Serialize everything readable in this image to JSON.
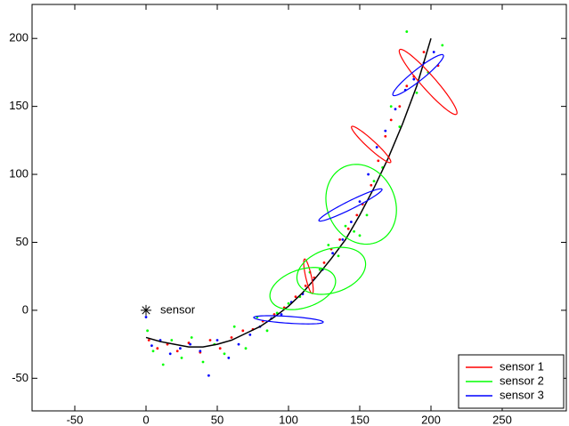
{
  "chart_data": {
    "type": "scatter",
    "xlim": [
      -80,
      295
    ],
    "ylim": [
      -74,
      225
    ],
    "xticks": [
      -50,
      0,
      50,
      100,
      150,
      200,
      250
    ],
    "yticks": [
      -50,
      0,
      50,
      100,
      150,
      200
    ],
    "legend": "lower right",
    "trajectory": {
      "color": "#000000",
      "x": [
        0,
        10,
        20,
        30,
        40,
        50,
        60,
        70,
        80,
        90,
        100,
        110,
        120,
        130,
        140,
        150,
        160,
        170,
        180,
        190,
        200
      ],
      "y": [
        -20,
        -23,
        -25,
        -27,
        -27,
        -25,
        -22,
        -17,
        -12,
        -5,
        3,
        13,
        25,
        38,
        52,
        70,
        90,
        112,
        137,
        165,
        200
      ]
    },
    "sensor_marker": {
      "x": 0,
      "y": 0,
      "label": "sensor"
    },
    "series": [
      {
        "name": "sensor 1",
        "color": "#ff0000",
        "x": [
          2,
          8,
          15,
          22,
          30,
          38,
          45,
          52,
          60,
          68,
          75,
          82,
          90,
          97,
          105,
          112,
          118,
          125,
          130,
          136,
          142,
          148,
          152,
          158,
          163,
          168,
          172,
          178,
          183,
          188,
          195,
          205
        ],
        "values": [
          -22,
          -28,
          -25,
          -30,
          -24,
          -31,
          -22,
          -28,
          -20,
          -15,
          -14,
          -8,
          -3,
          2,
          10,
          18,
          24,
          35,
          45,
          52,
          60,
          70,
          78,
          92,
          110,
          128,
          140,
          150,
          165,
          172,
          190,
          180
        ],
        "ellipses": [
          {
            "cx": 198,
            "cy": 168,
            "rx": 31,
            "ry": 5,
            "angle": -50
          },
          {
            "cx": 158,
            "cy": 122,
            "rx": 19,
            "ry": 3,
            "angle": -44
          },
          {
            "cx": 114,
            "cy": 25,
            "rx": 13,
            "ry": 2,
            "angle": -78
          }
        ]
      },
      {
        "name": "sensor 2",
        "color": "#00ff00",
        "x": [
          1,
          5,
          12,
          18,
          25,
          32,
          40,
          48,
          55,
          62,
          70,
          78,
          85,
          92,
          100,
          108,
          115,
          122,
          128,
          135,
          140,
          146,
          150,
          155,
          160,
          166,
          172,
          178,
          183,
          190,
          198,
          208
        ],
        "values": [
          -15,
          -30,
          -40,
          -22,
          -35,
          -20,
          -38,
          -25,
          -32,
          -12,
          -28,
          -5,
          -15,
          -2,
          5,
          10,
          28,
          30,
          48,
          40,
          62,
          58,
          55,
          70,
          95,
          105,
          150,
          135,
          205,
          160,
          175,
          195
        ],
        "ellipses": [
          {
            "cx": 151,
            "cy": 78,
            "rx": 24,
            "ry": 30,
            "angle": 20
          },
          {
            "cx": 130,
            "cy": 29,
            "rx": 25,
            "ry": 16,
            "angle": 20
          },
          {
            "cx": 110,
            "cy": 16,
            "rx": 24,
            "ry": 14,
            "angle": 20
          }
        ]
      },
      {
        "name": "sensor 3",
        "color": "#0000ff",
        "x": [
          0,
          4,
          10,
          17,
          24,
          31,
          38,
          44,
          50,
          58,
          65,
          73,
          80,
          88,
          95,
          102,
          110,
          117,
          124,
          131,
          138,
          144,
          150,
          156,
          162,
          168,
          175,
          182,
          188,
          195,
          202
        ],
        "values": [
          -5,
          -26,
          -22,
          -32,
          -28,
          -25,
          -30,
          -48,
          -22,
          -35,
          -25,
          -18,
          -12,
          -6,
          -3,
          6,
          12,
          22,
          30,
          42,
          52,
          65,
          80,
          100,
          120,
          132,
          148,
          162,
          170,
          182,
          190
        ],
        "ellipses": [
          {
            "cx": 191,
            "cy": 173,
            "rx": 23,
            "ry": 4,
            "angle": 40
          },
          {
            "cx": 143.5,
            "cy": 77.5,
            "rx": 25,
            "ry": 3,
            "angle": 27.6
          },
          {
            "cx": 100,
            "cy": -7,
            "rx": 24.5,
            "ry": 2.5,
            "angle": -4
          }
        ]
      }
    ]
  }
}
